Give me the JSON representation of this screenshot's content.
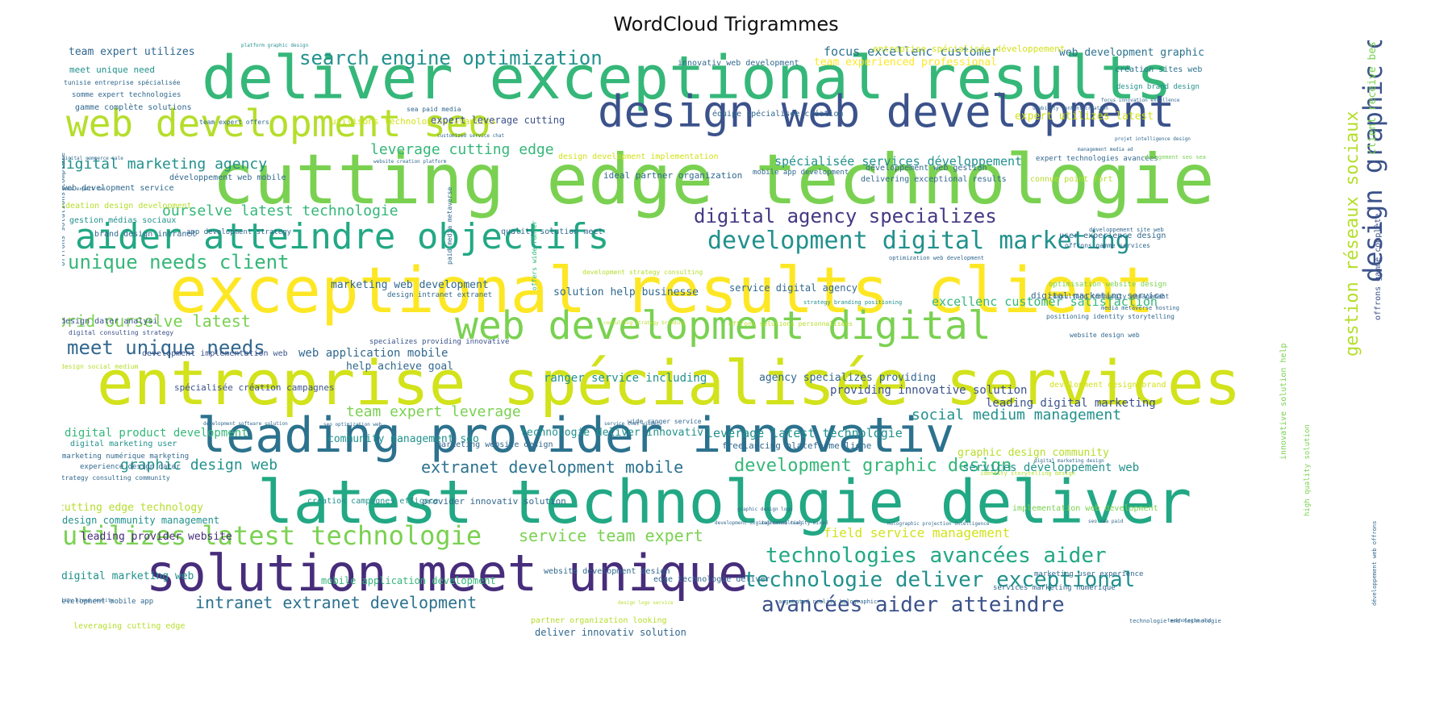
{
  "title": "WordCloud Trigrammes",
  "palette": "viridis",
  "words": [
    {
      "text": "deliver exceptional results",
      "color": "#35b779"
    },
    {
      "text": "cutting edge technologie",
      "color": "#7ad151"
    },
    {
      "text": "exceptional results client",
      "color": "#fde725"
    },
    {
      "text": "entreprise spécialisée services",
      "color": "#d2e21b"
    },
    {
      "text": "leading provider innovativ",
      "color": "#2c728e"
    },
    {
      "text": "latest technologie deliver",
      "color": "#22a884"
    },
    {
      "text": "solution meet unique",
      "color": "#472d7b"
    },
    {
      "text": "design web development",
      "color": "#3b528b"
    },
    {
      "text": "web development seo",
      "color": "#b5de2b"
    },
    {
      "text": "aider atteindre objectifs",
      "color": "#22a884"
    },
    {
      "text": "web development digital",
      "color": "#7ad151"
    },
    {
      "text": "development digital marketing",
      "color": "#21918c"
    },
    {
      "text": "digital agency specializes",
      "color": "#443983"
    },
    {
      "text": "utilizes latest technologie",
      "color": "#7ad151"
    },
    {
      "text": "technologies avancées aider",
      "color": "#22a884"
    },
    {
      "text": "technologie deliver exceptional",
      "color": "#21918c"
    },
    {
      "text": "avancées aider atteindre",
      "color": "#3b528b"
    },
    {
      "text": "design graphic design",
      "color": "#3b528b"
    },
    {
      "text": "gestion réseaux sociaux",
      "color": "#b5de2b"
    },
    {
      "text": "search engine optimization",
      "color": "#21918c"
    },
    {
      "text": "unique needs client",
      "color": "#35b779"
    },
    {
      "text": "meet unique needs",
      "color": "#31688e"
    },
    {
      "text": "extranet development mobile",
      "color": "#2c728e"
    },
    {
      "text": "development graphic design",
      "color": "#35b779"
    },
    {
      "text": "intranet extranet development",
      "color": "#2c728e"
    },
    {
      "text": "graphic design web",
      "color": "#21918c"
    },
    {
      "text": "leverage cutting edge",
      "color": "#35b779"
    },
    {
      "text": "digital marketing agency",
      "color": "#21918c"
    },
    {
      "text": "prid ourselve latest",
      "color": "#7ad151"
    },
    {
      "text": "ourselve latest technologie",
      "color": "#35b779"
    },
    {
      "text": "service team expert",
      "color": "#7ad151"
    },
    {
      "text": "social medium management",
      "color": "#21918c"
    },
    {
      "text": "spécialisée services développement",
      "color": "#21918c"
    },
    {
      "text": "focus excellenc customer",
      "color": "#2c728e"
    },
    {
      "text": "team expert leverage",
      "color": "#7ad151"
    },
    {
      "text": "field service management",
      "color": "#d2e21b"
    },
    {
      "text": "team experienced professional",
      "color": "#fde725"
    },
    {
      "text": "entreprise spécialisée développement",
      "color": "#d2e21b"
    },
    {
      "text": "expert utilizes latest",
      "color": "#d2e21b"
    },
    {
      "text": "web development graphic",
      "color": "#2c728e"
    },
    {
      "text": "excellenc customer satisfaction",
      "color": "#35b779"
    },
    {
      "text": "client receive best",
      "color": "#7ad151"
    },
    {
      "text": "offrons gamme complète",
      "color": "#3b528b"
    },
    {
      "text": "leading digital marketing",
      "color": "#3b528b"
    },
    {
      "text": "team expert utilizes",
      "color": "#31688e"
    },
    {
      "text": "meet unique need",
      "color": "#21918c"
    },
    {
      "text": "tunisie entreprise spécialisée",
      "color": "#31688e"
    },
    {
      "text": "somme expert technologies",
      "color": "#31688e"
    },
    {
      "text": "gamme complète solutions",
      "color": "#31688e"
    },
    {
      "text": "utilisons technologies avancées",
      "color": "#d2e21b"
    },
    {
      "text": "expert leverage cutting",
      "color": "#3b528b"
    },
    {
      "text": "innovativ web development",
      "color": "#31688e"
    },
    {
      "text": "création sites web",
      "color": "#2c728e"
    },
    {
      "text": "design brand design",
      "color": "#21918c"
    },
    {
      "text": "équipe spécialisée création",
      "color": "#31688e"
    },
    {
      "text": "design development implementation",
      "color": "#d2e21b"
    },
    {
      "text": "ideal partner organization",
      "color": "#31688e"
    },
    {
      "text": "mobile app development",
      "color": "#31688e"
    },
    {
      "text": "développement web gestion",
      "color": "#31688e"
    },
    {
      "text": "delivering exceptional results",
      "color": "#31688e"
    },
    {
      "text": "expert technologies avancées",
      "color": "#31688e"
    },
    {
      "text": "connue point fort",
      "color": "#b5de2b"
    },
    {
      "text": "développement web mobile",
      "color": "#31688e"
    },
    {
      "text": "web development service",
      "color": "#31688e"
    },
    {
      "text": "ideation design development",
      "color": "#b5de2b"
    },
    {
      "text": "gestion médias sociaux",
      "color": "#21918c"
    },
    {
      "text": "brand design intranet",
      "color": "#31688e"
    },
    {
      "text": "app development strategy",
      "color": "#31688e"
    },
    {
      "text": "quality solution meet",
      "color": "#31688e"
    },
    {
      "text": "marketing web development",
      "color": "#31688e"
    },
    {
      "text": "design intranet extranet",
      "color": "#31688e"
    },
    {
      "text": "solution help businesse",
      "color": "#31688e"
    },
    {
      "text": "service digital agency",
      "color": "#31688e"
    },
    {
      "text": "digital marketing service",
      "color": "#31688e"
    },
    {
      "text": "user experience design",
      "color": "#31688e"
    },
    {
      "text": "offrons gamme services",
      "color": "#31688e"
    },
    {
      "text": "web application mobile",
      "color": "#31688e"
    },
    {
      "text": "help achieve goal",
      "color": "#31688e"
    },
    {
      "text": "ranger service including",
      "color": "#21918c"
    },
    {
      "text": "agency specializes providing",
      "color": "#31688e"
    },
    {
      "text": "providing innovative solution",
      "color": "#3b528b"
    },
    {
      "text": "specializes providing innovative",
      "color": "#3b528b"
    },
    {
      "text": "design dater analysi",
      "color": "#3b528b"
    },
    {
      "text": "digital consulting strategy",
      "color": "#3b528b"
    },
    {
      "text": "development implementation web",
      "color": "#3b528b"
    },
    {
      "text": "spécialisée création campagnes",
      "color": "#3b528b"
    },
    {
      "text": "digital product development",
      "color": "#35b779"
    },
    {
      "text": "technologie deliver innovativ",
      "color": "#21918c"
    },
    {
      "text": "leverage latest technologie",
      "color": "#21918c"
    },
    {
      "text": "community management seo",
      "color": "#21918c"
    },
    {
      "text": "marketing website design",
      "color": "#31688e"
    },
    {
      "text": "freelancing plateforme ligne",
      "color": "#31688e"
    },
    {
      "text": "graphic design community",
      "color": "#b5de2b"
    },
    {
      "text": "services développement web",
      "color": "#21918c"
    },
    {
      "text": "digital marketing user",
      "color": "#21918c"
    },
    {
      "text": "marketing numérique marketing",
      "color": "#31688e"
    },
    {
      "text": "experience design dater",
      "color": "#31688e"
    },
    {
      "text": "strategy consulting community",
      "color": "#31688e"
    },
    {
      "text": "cutting edge technology",
      "color": "#b5de2b"
    },
    {
      "text": "design community management",
      "color": "#21918c"
    },
    {
      "text": "leading provider website",
      "color": "#472d7b"
    },
    {
      "text": "création campagnes efficace",
      "color": "#21918c"
    },
    {
      "text": "provider innovativ solution",
      "color": "#31688e"
    },
    {
      "text": "digital marketing web",
      "color": "#21918c"
    },
    {
      "text": "mobile application development",
      "color": "#35b779"
    },
    {
      "text": "website development design",
      "color": "#31688e"
    },
    {
      "text": "edge technologie deliver",
      "color": "#31688e"
    },
    {
      "text": "marketing user experience",
      "color": "#31688e"
    },
    {
      "text": "development mobile app",
      "color": "#31688e"
    },
    {
      "text": "leveraging cutting edge",
      "color": "#b5de2b"
    },
    {
      "text": "partner organization looking",
      "color": "#b5de2b"
    },
    {
      "text": "deliver innovativ solution",
      "color": "#31688e"
    },
    {
      "text": "services marketing numérique",
      "color": "#31688e"
    },
    {
      "text": "augmented reality holographic",
      "color": "#31688e"
    },
    {
      "text": "consulting community management",
      "color": "#31688e"
    },
    {
      "text": "positioning identity storytelling",
      "color": "#31688e"
    },
    {
      "text": "website design web",
      "color": "#31688e"
    },
    {
      "text": "optimisation website design",
      "color": "#7ad151"
    },
    {
      "text": "development design brand",
      "color": "#d2e21b"
    },
    {
      "text": "implementation web development",
      "color": "#7ad151"
    },
    {
      "text": "innovative solution help",
      "color": "#7ad151"
    },
    {
      "text": "high quality solution",
      "color": "#7ad151"
    },
    {
      "text": "sea paid media",
      "color": "#31688e"
    },
    {
      "text": "team expert offers",
      "color": "#31688e"
    },
    {
      "text": "focus innovation excellence",
      "color": "#31688e"
    },
    {
      "text": "technologie end technologie",
      "color": "#31688e"
    },
    {
      "text": "wide ranger service",
      "color": "#31688e"
    },
    {
      "text": "paid media metaverse",
      "color": "#31688e"
    },
    {
      "text": "offrons solutions complète",
      "color": "#31688e"
    },
    {
      "text": "offers wide ranger",
      "color": "#35b779"
    },
    {
      "text": "graphic design logo",
      "color": "#31688e"
    },
    {
      "text": "strategy branding positioning",
      "color": "#21918c"
    },
    {
      "text": "development strategy consulting",
      "color": "#b5de2b"
    },
    {
      "text": "optimization web development",
      "color": "#31688e"
    },
    {
      "text": "media metaverse hosting",
      "color": "#31688e"
    },
    {
      "text": "développement web offrons",
      "color": "#31688e"
    },
    {
      "text": "développement site web",
      "color": "#31688e"
    },
    {
      "text": "identity storytelling design",
      "color": "#b5de2b"
    },
    {
      "text": "augmented reality mixed",
      "color": "#31688e"
    },
    {
      "text": "reality mixed reality",
      "color": "#31688e"
    },
    {
      "text": "design logo service",
      "color": "#b5de2b"
    },
    {
      "text": "digital commerce sale",
      "color": "#31688e"
    },
    {
      "text": "somme expert dan",
      "color": "#31688e"
    },
    {
      "text": "design social medium",
      "color": "#b5de2b"
    },
    {
      "text": "customized service chat",
      "color": "#31688e"
    },
    {
      "text": "projet intelligence design",
      "color": "#31688e"
    },
    {
      "text": "platform graphic design",
      "color": "#21918c"
    },
    {
      "text": "management seo sea",
      "color": "#7ad151"
    },
    {
      "text": "seo sea paid",
      "color": "#31688e"
    },
    {
      "text": "management media ad",
      "color": "#31688e"
    },
    {
      "text": "usability content creation",
      "color": "#31688e"
    },
    {
      "text": "website creation platform",
      "color": "#31688e"
    },
    {
      "text": "digital marketing design",
      "color": "#31688e"
    },
    {
      "text": "development software solution",
      "color": "#31688e"
    },
    {
      "text": "seo optimization web",
      "color": "#31688e"
    },
    {
      "text": "service chat widget",
      "color": "#31688e"
    },
    {
      "text": "consulting strategy branding",
      "color": "#b5de2b"
    },
    {
      "text": "offrons solutions personnalisées",
      "color": "#b5de2b"
    },
    {
      "text": "development digital consulting",
      "color": "#31688e"
    },
    {
      "text": "holographic projection intelligence",
      "color": "#31688e"
    },
    {
      "text": "technologie end",
      "color": "#31688e"
    }
  ]
}
